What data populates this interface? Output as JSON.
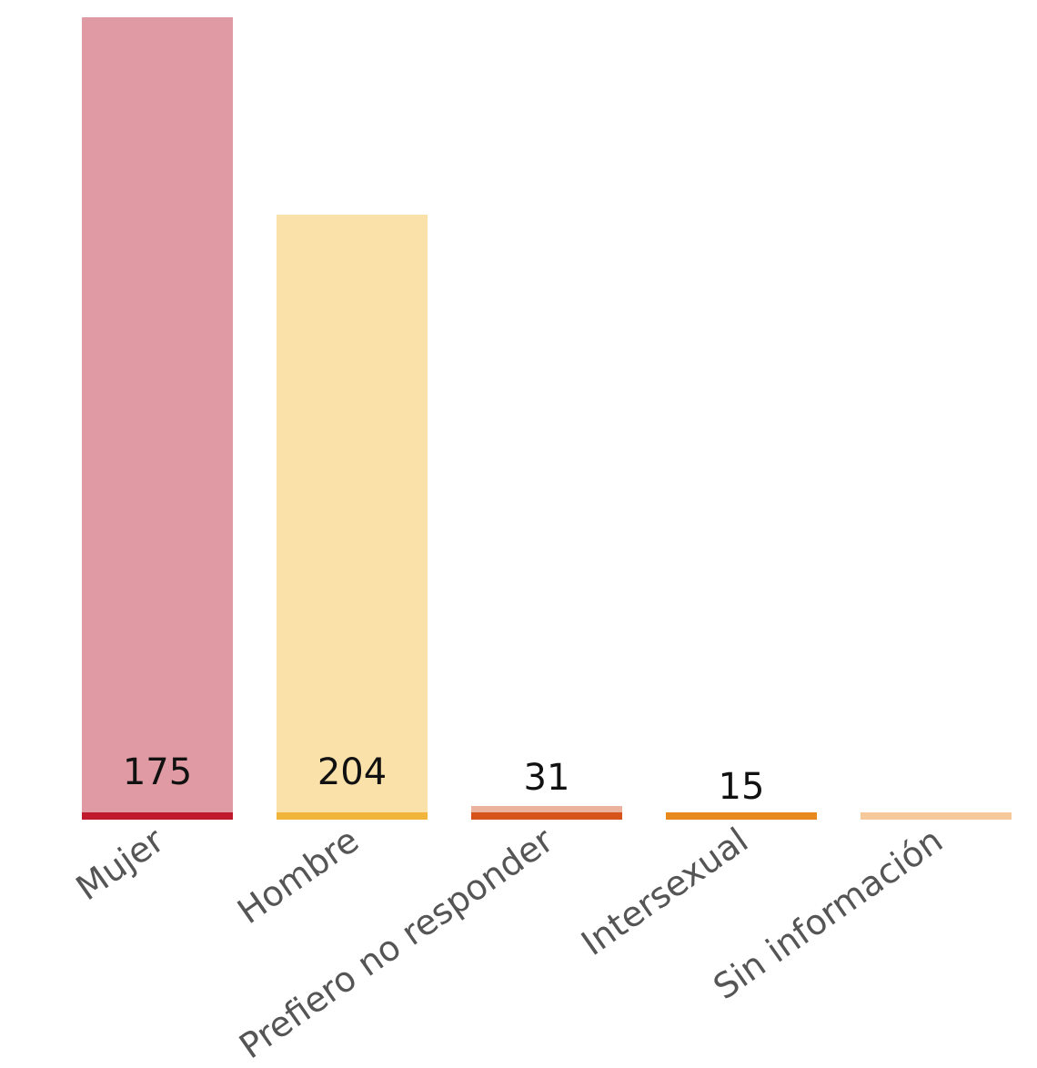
{
  "chart_data": {
    "type": "bar",
    "title": "",
    "xlabel": "",
    "ylabel": "",
    "categories": [
      "Mujer",
      "Hombre",
      "Prefiero no responder",
      "Intersexual",
      "Sin información"
    ],
    "series": [
      {
        "values": [
          175,
          204,
          31,
          15,
          0
        ],
        "value_labels": [
          "175",
          "204",
          "31",
          "15",
          ""
        ]
      }
    ],
    "bar_fill_colors": [
      "#e09aa3",
      "#fae1aa",
      "#ebb39e",
      "#fbdcb0",
      "#fde9cd"
    ],
    "bar_baseline_colors": [
      "#c0182c",
      "#f0b53a",
      "#d6531c",
      "#e8891e",
      "#f6c99a"
    ],
    "grid": false,
    "legend": "none"
  }
}
